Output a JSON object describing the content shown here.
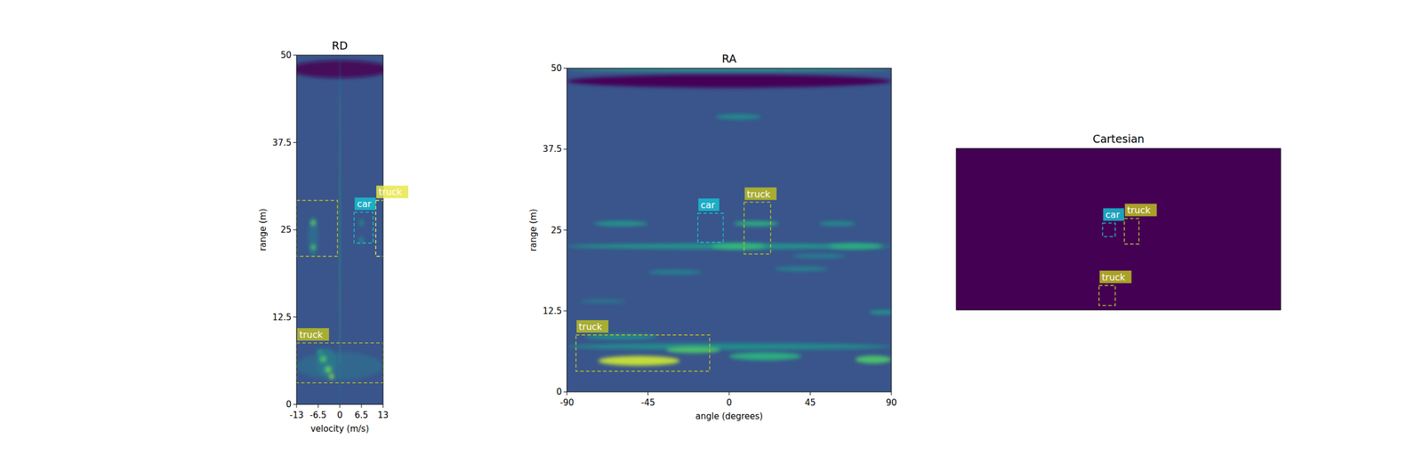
{
  "chart_data": [
    {
      "type": "heatmap",
      "title": "RD",
      "x_label": "velocity (m/s)",
      "y_label": "range (m)",
      "xlim": [
        -13,
        13
      ],
      "ylim": [
        0,
        50
      ],
      "xticks": [
        -13,
        -6.5,
        0,
        6.5,
        13
      ],
      "yticks": [
        0,
        12.5,
        25,
        37.5,
        50
      ],
      "background": 0.3,
      "blobs": [
        {
          "x": 0,
          "y": 48,
          "w": 30,
          "h": 2.5,
          "intensity": 0.02
        },
        {
          "x": 0,
          "y": 5.5,
          "w": 26,
          "h": 4,
          "intensity": 0.38
        },
        {
          "x": -4,
          "y": 6,
          "w": 6,
          "h": 4,
          "intensity": 0.45
        },
        {
          "x": -8,
          "y": 24,
          "w": 3,
          "h": 6,
          "intensity": 0.4
        },
        {
          "x": 0,
          "y": 25,
          "w": 0.35,
          "h": 50,
          "intensity": 0.6
        },
        {
          "x": -8,
          "y": 26,
          "w": 1.5,
          "h": 0.8,
          "intensity": 0.85
        },
        {
          "x": -8,
          "y": 22.5,
          "w": 1.5,
          "h": 0.8,
          "intensity": 0.8
        },
        {
          "x": 6.5,
          "y": 26,
          "w": 1.5,
          "h": 1,
          "intensity": 0.5
        },
        {
          "x": 6.5,
          "y": 23.5,
          "w": 1.5,
          "h": 1,
          "intensity": 0.5
        },
        {
          "x": -5,
          "y": 6.5,
          "w": 2,
          "h": 1,
          "intensity": 0.8
        },
        {
          "x": -3.5,
          "y": 5,
          "w": 2,
          "h": 1,
          "intensity": 0.85
        },
        {
          "x": -2.5,
          "y": 4,
          "w": 1.5,
          "h": 0.8,
          "intensity": 0.9
        },
        {
          "x": -6,
          "y": 7.5,
          "w": 1.5,
          "h": 0.8,
          "intensity": 0.65
        }
      ],
      "boxes": [
        {
          "color": "#bcbd22",
          "x": [
            -13,
            -0.7
          ],
          "y": [
            21.2,
            29.2
          ]
        },
        {
          "label": "truck",
          "color": "#e8e84a",
          "x": [
            10.8,
            15
          ],
          "y": [
            21.2,
            29.2
          ]
        },
        {
          "label": "car",
          "color": "#17becf",
          "x": [
            4.3,
            10
          ],
          "y": [
            23.1,
            27.5
          ]
        },
        {
          "label": "truck",
          "color": "#bcbd22",
          "x": [
            -13,
            13
          ],
          "y": [
            3.1,
            8.8
          ]
        }
      ]
    },
    {
      "type": "heatmap",
      "title": "RA",
      "x_label": "angle (degrees)",
      "y_label": "range (m)",
      "xlim": [
        -90,
        90
      ],
      "ylim": [
        0,
        50
      ],
      "xticks": [
        -90,
        -45,
        0,
        45,
        90
      ],
      "yticks": [
        0,
        12.5,
        25,
        37.5,
        50
      ],
      "background": 0.3,
      "blobs": [
        {
          "x": 0,
          "y": 48,
          "w": 180,
          "h": 2,
          "intensity": 0.0
        },
        {
          "x": 0,
          "y": 49.8,
          "w": 180,
          "h": 0.4,
          "intensity": 0.7
        },
        {
          "x": 0,
          "y": 22.5,
          "w": 180,
          "h": 0.8,
          "intensity": 0.6
        },
        {
          "x": -60,
          "y": 26,
          "w": 30,
          "h": 0.8,
          "intensity": 0.6
        },
        {
          "x": 15,
          "y": 26,
          "w": 25,
          "h": 0.8,
          "intensity": 0.7
        },
        {
          "x": 60,
          "y": 26,
          "w": 20,
          "h": 0.7,
          "intensity": 0.55
        },
        {
          "x": 5,
          "y": 22.5,
          "w": 30,
          "h": 0.9,
          "intensity": 0.75
        },
        {
          "x": 70,
          "y": 22.5,
          "w": 30,
          "h": 0.9,
          "intensity": 0.7
        },
        {
          "x": 5,
          "y": 42.5,
          "w": 25,
          "h": 0.8,
          "intensity": 0.55
        },
        {
          "x": 0,
          "y": 7,
          "w": 180,
          "h": 1,
          "intensity": 0.55
        },
        {
          "x": -50,
          "y": 4.8,
          "w": 45,
          "h": 1.5,
          "intensity": 0.95
        },
        {
          "x": -20,
          "y": 6.5,
          "w": 30,
          "h": 1,
          "intensity": 0.8
        },
        {
          "x": 20,
          "y": 5.5,
          "w": 40,
          "h": 1.2,
          "intensity": 0.7
        },
        {
          "x": 80,
          "y": 5,
          "w": 20,
          "h": 1.2,
          "intensity": 0.8
        },
        {
          "x": -60,
          "y": 8.5,
          "w": 40,
          "h": 0.8,
          "intensity": 0.55
        },
        {
          "x": 85,
          "y": 12.3,
          "w": 15,
          "h": 0.6,
          "intensity": 0.6
        },
        {
          "x": -30,
          "y": 18.5,
          "w": 30,
          "h": 0.7,
          "intensity": 0.5
        },
        {
          "x": 40,
          "y": 19,
          "w": 30,
          "h": 0.7,
          "intensity": 0.5
        },
        {
          "x": 50,
          "y": 21,
          "w": 30,
          "h": 0.6,
          "intensity": 0.5
        },
        {
          "x": -70,
          "y": 14,
          "w": 25,
          "h": 0.6,
          "intensity": 0.45
        }
      ],
      "boxes": [
        {
          "label": "car",
          "color": "#17becf",
          "x": [
            -17.4,
            -3.3
          ],
          "y": [
            23.1,
            27.6
          ]
        },
        {
          "label": "truck",
          "color": "#bcbd22",
          "x": [
            8.3,
            23
          ],
          "y": [
            21.3,
            29.3
          ]
        },
        {
          "label": "truck",
          "color": "#bcbd22",
          "x": [
            -85,
            -10.8
          ],
          "y": [
            3.2,
            8.8
          ]
        }
      ]
    },
    {
      "type": "heatmap",
      "title": "Cartesian",
      "tick_labels": false,
      "xlim": [
        -50,
        50
      ],
      "ylim": [
        0,
        50
      ],
      "background": 0.0,
      "blobs": [],
      "boxes": [
        {
          "label": "car",
          "color": "#17becf",
          "x": [
            -4.9,
            -1
          ],
          "y": [
            22.7,
            26.9
          ]
        },
        {
          "label": "truck",
          "color": "#bcbd22",
          "x": [
            1.8,
            6.3
          ],
          "y": [
            20.4,
            28.3
          ]
        },
        {
          "label": "truck",
          "color": "#bcbd22",
          "x": [
            -6,
            -1
          ],
          "y": [
            1.4,
            7.6
          ]
        }
      ]
    }
  ]
}
